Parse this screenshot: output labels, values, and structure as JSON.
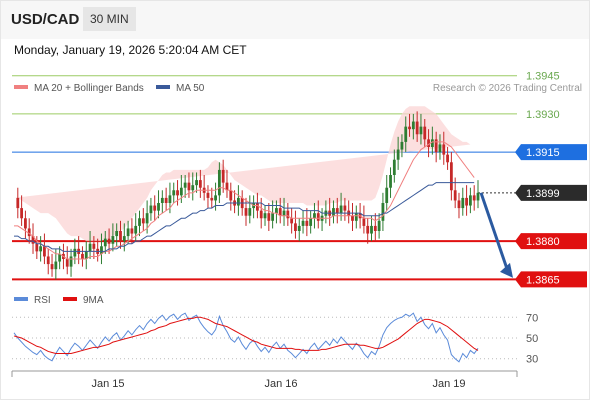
{
  "header": {
    "symbol": "USD/CAD",
    "timeframe": "30 MIN",
    "datetime": "Monday, January 19, 2026 5:20:04 AM CET"
  },
  "colors": {
    "bollinger": "#f08080",
    "ma50": "#3a5a9a",
    "rsi": "#5b8bd9",
    "rsi_ma": "#e01010",
    "level_green": "#9ccc65",
    "level_blue": "#1e6fe0",
    "level_red": "#e01010",
    "arrow": "#2b5aa0",
    "candle_up": "#2e7d32",
    "candle_down": "#c62828"
  },
  "chart_data": [
    {
      "type": "candlestick",
      "legend": [
        {
          "name": "MA 20 + Bollinger Bands",
          "color": "#f08080"
        },
        {
          "name": "MA 50",
          "color": "#3a5a9a"
        }
      ],
      "attribution": "Research © 2026 Trading Central",
      "x_labels": [
        "Jan 15",
        "Jan 16",
        "Jan 19"
      ],
      "levels": [
        {
          "value": 1.3945,
          "label": "1.3945",
          "kind": "resistance"
        },
        {
          "value": 1.393,
          "label": "1.3930",
          "kind": "resistance"
        },
        {
          "value": 1.3915,
          "label": "1.3915",
          "kind": "pivot"
        },
        {
          "value": 1.3899,
          "label": "1.3899",
          "kind": "last"
        },
        {
          "value": 1.388,
          "label": "1.3880",
          "kind": "support"
        },
        {
          "value": 1.3865,
          "label": "1.3865",
          "kind": "support"
        }
      ],
      "ylim": [
        1.3862,
        1.395
      ],
      "close": [
        1.3897,
        1.3893,
        1.3889,
        1.3885,
        1.3882,
        1.3879,
        1.3876,
        1.3878,
        1.3874,
        1.3871,
        1.3869,
        1.3872,
        1.3875,
        1.3873,
        1.387,
        1.3874,
        1.3877,
        1.3875,
        1.3873,
        1.3876,
        1.3879,
        1.3877,
        1.3875,
        1.3878,
        1.3881,
        1.3879,
        1.3882,
        1.3884,
        1.388,
        1.3882,
        1.3885,
        1.3883,
        1.3886,
        1.3889,
        1.3887,
        1.3891,
        1.3894,
        1.3892,
        1.3895,
        1.3897,
        1.3895,
        1.3898,
        1.39,
        1.3898,
        1.3901,
        1.3903,
        1.39,
        1.3902,
        1.3904,
        1.3901,
        1.3899,
        1.3897,
        1.3896,
        1.3898,
        1.3908,
        1.3903,
        1.39,
        1.3896,
        1.3894,
        1.3897,
        1.3893,
        1.389,
        1.3893,
        1.3895,
        1.3892,
        1.3889,
        1.3891,
        1.3888,
        1.3891,
        1.3893,
        1.389,
        1.3892,
        1.3889,
        1.3887,
        1.3884,
        1.3886,
        1.3888,
        1.3886,
        1.3889,
        1.3891,
        1.3888,
        1.389,
        1.3892,
        1.389,
        1.3893,
        1.3891,
        1.3894,
        1.3892,
        1.389,
        1.3888,
        1.3891,
        1.3889,
        1.3886,
        1.3883,
        1.3886,
        1.3884,
        1.3888,
        1.3895,
        1.3901,
        1.3906,
        1.3912,
        1.3916,
        1.3919,
        1.3925,
        1.3924,
        1.3927,
        1.3922,
        1.3925,
        1.392,
        1.3917,
        1.392,
        1.3915,
        1.3918,
        1.3914,
        1.3911,
        1.39,
        1.3896,
        1.3893,
        1.3897,
        1.3894,
        1.3898,
        1.3896,
        1.3899
      ],
      "ma20": [
        1.3886,
        1.3886,
        1.3885,
        1.3884,
        1.3883,
        1.3882,
        1.388,
        1.3879,
        1.3878,
        1.3877,
        1.3876,
        1.3875,
        1.3875,
        1.3874,
        1.3873,
        1.3873,
        1.3873,
        1.3873,
        1.3873,
        1.3873,
        1.3874,
        1.3874,
        1.3874,
        1.3875,
        1.3876,
        1.3876,
        1.3877,
        1.3878,
        1.3878,
        1.3879,
        1.388,
        1.3881,
        1.3882,
        1.3883,
        1.3884,
        1.3885,
        1.3887,
        1.3888,
        1.389,
        1.3891,
        1.3892,
        1.3893,
        1.3895,
        1.3896,
        1.3897,
        1.3898,
        1.3899,
        1.3899,
        1.39,
        1.39,
        1.39,
        1.39,
        1.39,
        1.39,
        1.3901,
        1.3901,
        1.39,
        1.39,
        1.3899,
        1.3898,
        1.3897,
        1.3896,
        1.3895,
        1.3894,
        1.3894,
        1.3893,
        1.3892,
        1.3892,
        1.3891,
        1.3891,
        1.389,
        1.389,
        1.389,
        1.3889,
        1.3889,
        1.3889,
        1.3889,
        1.3889,
        1.3889,
        1.3889,
        1.3889,
        1.3889,
        1.3889,
        1.3889,
        1.389,
        1.389,
        1.389,
        1.389,
        1.389,
        1.389,
        1.389,
        1.389,
        1.3889,
        1.3889,
        1.3889,
        1.3888,
        1.3889,
        1.389,
        1.3892,
        1.3894,
        1.3897,
        1.39,
        1.3903,
        1.3906,
        1.3909,
        1.3912,
        1.3914,
        1.3916,
        1.3917,
        1.3918,
        1.3919,
        1.3919,
        1.3919,
        1.3919,
        1.3918,
        1.3917,
        1.3915,
        1.3913,
        1.3911,
        1.3909,
        1.3907,
        1.3905
      ],
      "bb_upper": [
        1.3897,
        1.3897,
        1.3896,
        1.3895,
        1.3894,
        1.3893,
        1.3892,
        1.3891,
        1.3891,
        1.3891,
        1.389,
        1.3889,
        1.3887,
        1.3885,
        1.3883,
        1.3882,
        1.3882,
        1.3882,
        1.3881,
        1.388,
        1.388,
        1.388,
        1.388,
        1.388,
        1.3881,
        1.3881,
        1.3882,
        1.3883,
        1.3884,
        1.3885,
        1.3887,
        1.3889,
        1.3891,
        1.3893,
        1.3895,
        1.3897,
        1.39,
        1.3902,
        1.3904,
        1.3906,
        1.3907,
        1.3907,
        1.3908,
        1.3908,
        1.3908,
        1.3908,
        1.3908,
        1.3908,
        1.3908,
        1.3908,
        1.3908,
        1.3909,
        1.3911,
        1.3912,
        1.3911,
        1.391,
        1.3908,
        1.3906,
        1.3904,
        1.3903,
        1.3902,
        1.3901,
        1.39,
        1.3899,
        1.3898,
        1.3898,
        1.3897,
        1.3896,
        1.3895,
        1.3895,
        1.3895,
        1.3895,
        1.3895,
        1.3895,
        1.3895,
        1.3895,
        1.3895,
        1.3894,
        1.3894,
        1.3894,
        1.3894,
        1.3894,
        1.3894,
        1.3895,
        1.3895,
        1.3895,
        1.3896,
        1.3896,
        1.3896,
        1.3896,
        1.3896,
        1.3896,
        1.3896,
        1.3896,
        1.3896,
        1.3897,
        1.3901,
        1.3906,
        1.3912,
        1.3918,
        1.3923,
        1.3927,
        1.393,
        1.3932,
        1.3933,
        1.3933,
        1.3933,
        1.3933,
        1.3933,
        1.3932,
        1.3931,
        1.393,
        1.3928,
        1.3926,
        1.3924,
        1.3922,
        1.3921,
        1.392,
        1.3919,
        1.3919,
        1.3918
      ],
      "bb_lower": [
        1.3875,
        1.3875,
        1.3874,
        1.3873,
        1.3872,
        1.3871,
        1.3868,
        1.3867,
        1.3865,
        1.3863,
        1.3862,
        1.3861,
        1.3863,
        1.3863,
        1.3863,
        1.3864,
        1.3864,
        1.3864,
        1.3865,
        1.3866,
        1.3868,
        1.3868,
        1.3868,
        1.387,
        1.3871,
        1.3871,
        1.3872,
        1.3873,
        1.3872,
        1.3873,
        1.3873,
        1.3873,
        1.3873,
        1.3873,
        1.3873,
        1.3873,
        1.3874,
        1.3874,
        1.3876,
        1.3876,
        1.3877,
        1.3879,
        1.3882,
        1.3884,
        1.3886,
        1.3888,
        1.389,
        1.389,
        1.3892,
        1.3892,
        1.3892,
        1.3891,
        1.3889,
        1.3888,
        1.3891,
        1.3892,
        1.3892,
        1.3894,
        1.3894,
        1.3893,
        1.3892,
        1.3891,
        1.389,
        1.3889,
        1.389,
        1.3888,
        1.3887,
        1.3888,
        1.3887,
        1.3887,
        1.3885,
        1.3885,
        1.3885,
        1.3883,
        1.3883,
        1.3883,
        1.3883,
        1.3884,
        1.3884,
        1.3884,
        1.3884,
        1.3884,
        1.3884,
        1.3883,
        1.3885,
        1.3885,
        1.3884,
        1.3884,
        1.3884,
        1.3884,
        1.3884,
        1.3884,
        1.3882,
        1.3882,
        1.3882,
        1.3879,
        1.3877,
        1.3874,
        1.3872,
        1.387,
        1.3871,
        1.3873,
        1.3876,
        1.388,
        1.3885,
        1.3891,
        1.3895,
        1.3899,
        1.3901,
        1.3904,
        1.3907,
        1.3908,
        1.391,
        1.3912,
        1.3912,
        1.3912,
        1.3909,
        1.3906,
        1.3903,
        1.3899,
        1.3896,
        1.3892
      ],
      "ma50": [
        1.3882,
        1.3882,
        1.3881,
        1.3881,
        1.388,
        1.388,
        1.3879,
        1.3879,
        1.3878,
        1.3878,
        1.3877,
        1.3877,
        1.3877,
        1.3876,
        1.3876,
        1.3876,
        1.3876,
        1.3876,
        1.3876,
        1.3876,
        1.3876,
        1.3876,
        1.3876,
        1.3876,
        1.3876,
        1.3877,
        1.3877,
        1.3877,
        1.3878,
        1.3878,
        1.3879,
        1.3879,
        1.388,
        1.388,
        1.3881,
        1.3882,
        1.3882,
        1.3883,
        1.3884,
        1.3885,
        1.3886,
        1.3886,
        1.3887,
        1.3888,
        1.3889,
        1.3889,
        1.389,
        1.3891,
        1.3891,
        1.3892,
        1.3892,
        1.3893,
        1.3893,
        1.3894,
        1.3894,
        1.3894,
        1.3895,
        1.3895,
        1.3895,
        1.3895,
        1.3895,
        1.3895,
        1.3895,
        1.3895,
        1.3895,
        1.3895,
        1.3894,
        1.3894,
        1.3894,
        1.3894,
        1.3894,
        1.3893,
        1.3893,
        1.3893,
        1.3893,
        1.3893,
        1.3892,
        1.3892,
        1.3892,
        1.3892,
        1.3892,
        1.3891,
        1.3891,
        1.3891,
        1.3891,
        1.3891,
        1.3891,
        1.3891,
        1.3891,
        1.3891,
        1.3891,
        1.3891,
        1.389,
        1.389,
        1.389,
        1.389,
        1.389,
        1.3891,
        1.3891,
        1.3892,
        1.3893,
        1.3894,
        1.3895,
        1.3896,
        1.3897,
        1.3898,
        1.3899,
        1.39,
        1.3901,
        1.3902,
        1.3902,
        1.3903,
        1.3903,
        1.3903,
        1.3903,
        1.3903,
        1.3903,
        1.3903,
        1.3903,
        1.3903,
        1.3903,
        1.3903
      ]
    },
    {
      "type": "line",
      "legend": [
        {
          "name": "RSI",
          "color": "#5b8bd9"
        },
        {
          "name": "9MA",
          "color": "#e01010"
        }
      ],
      "y_ticks": [
        70,
        50,
        30
      ],
      "ylim": [
        22,
        78
      ],
      "series": [
        {
          "name": "RSI",
          "values": [
            55,
            50,
            46,
            42,
            39,
            36,
            34,
            38,
            33,
            30,
            28,
            35,
            41,
            37,
            33,
            40,
            45,
            42,
            38,
            43,
            48,
            44,
            40,
            46,
            51,
            47,
            52,
            55,
            48,
            52,
            57,
            53,
            58,
            62,
            58,
            64,
            68,
            64,
            69,
            72,
            67,
            71,
            73,
            68,
            72,
            74,
            67,
            70,
            72,
            65,
            60,
            56,
            53,
            58,
            71,
            62,
            56,
            49,
            46,
            51,
            44,
            39,
            45,
            48,
            42,
            37,
            41,
            36,
            42,
            46,
            40,
            44,
            38,
            35,
            31,
            35,
            39,
            35,
            41,
            45,
            39,
            43,
            47,
            43,
            49,
            45,
            51,
            47,
            43,
            39,
            45,
            41,
            35,
            31,
            37,
            34,
            42,
            53,
            60,
            64,
            67,
            69,
            70,
            73,
            71,
            74,
            66,
            70,
            63,
            59,
            64,
            55,
            60,
            53,
            48,
            34,
            30,
            27,
            35,
            31,
            38,
            35,
            40
          ]
        },
        {
          "name": "9MA",
          "values": [
            52,
            51,
            50,
            48,
            46,
            44,
            42,
            41,
            39,
            37,
            36,
            35,
            35,
            35,
            35,
            35,
            36,
            37,
            38,
            39,
            40,
            41,
            41,
            42,
            43,
            44,
            46,
            47,
            48,
            49,
            50,
            51,
            52,
            53,
            54,
            55,
            57,
            58,
            60,
            61,
            62,
            64,
            65,
            66,
            67,
            68,
            69,
            69,
            70,
            70,
            69,
            68,
            66,
            64,
            63,
            62,
            61,
            59,
            57,
            55,
            53,
            51,
            49,
            47,
            46,
            44,
            43,
            42,
            41,
            40,
            40,
            40,
            40,
            40,
            39,
            39,
            38,
            38,
            38,
            38,
            38,
            39,
            39,
            40,
            41,
            42,
            43,
            44,
            44,
            44,
            44,
            43,
            43,
            42,
            41,
            40,
            40,
            41,
            43,
            45,
            47,
            49,
            52,
            55,
            58,
            61,
            64,
            66,
            68,
            68,
            67,
            66,
            65,
            63,
            61,
            58,
            55,
            52,
            49,
            46,
            43,
            40,
            38
          ]
        }
      ]
    }
  ]
}
